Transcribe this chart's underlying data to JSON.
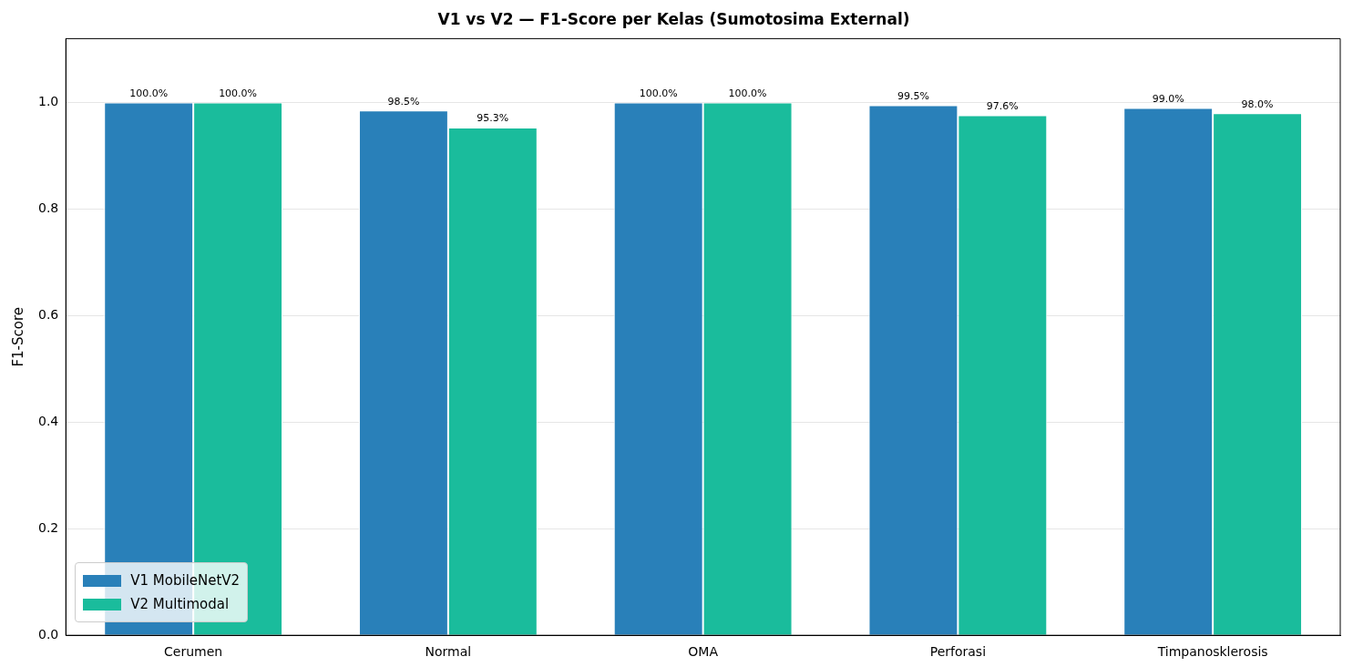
{
  "chart_data": {
    "type": "bar",
    "title": "V1 vs V2 — F1-Score per Kelas (Sumotosima External)",
    "ylabel": "F1-Score",
    "categories": [
      "Cerumen",
      "Normal",
      "OMA",
      "Perforasi",
      "Timpanosklerosis"
    ],
    "series": [
      {
        "name": "V1 MobileNetV2",
        "color": "#2980b9",
        "values": [
          1.0,
          0.985,
          1.0,
          0.995,
          0.99
        ],
        "value_labels": [
          "100.0%",
          "98.5%",
          "100.0%",
          "99.5%",
          "99.0%"
        ]
      },
      {
        "name": "V2 Multimodal",
        "color": "#1abc9c",
        "values": [
          1.0,
          0.953,
          1.0,
          0.976,
          0.98
        ],
        "value_labels": [
          "100.0%",
          "95.3%",
          "100.0%",
          "97.6%",
          "98.0%"
        ]
      }
    ],
    "ylim": [
      0,
      1.12
    ],
    "yticks": [
      {
        "value": 0,
        "label": "0.0"
      },
      0.2,
      0.4,
      0.6,
      0.8,
      {
        "value": 1,
        "label": "1.0"
      }
    ],
    "grid": "y",
    "legend": "bottom left"
  }
}
